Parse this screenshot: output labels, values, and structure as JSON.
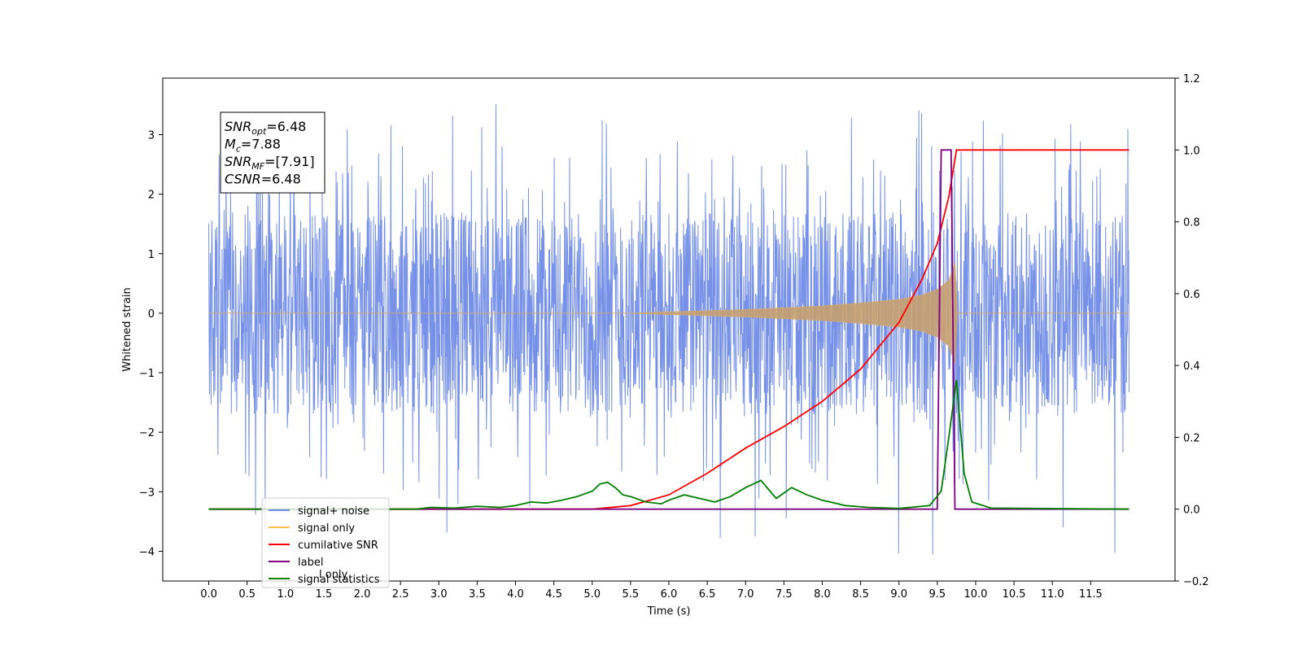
{
  "chart_data": {
    "type": "line",
    "xlabel": "Time (s)",
    "ylabel": "Whitened strain",
    "xlim": [
      -0.6,
      12.6
    ],
    "ylim": [
      -4.5,
      3.95
    ],
    "y2lim": [
      -0.2,
      1.2
    ],
    "x_ticks": [
      "0.0",
      "0.5",
      "1.0",
      "1.5",
      "2.0",
      "2.5",
      "3.0",
      "3.5",
      "4.0",
      "4.5",
      "5.0",
      "5.5",
      "6.0",
      "6.5",
      "7.0",
      "7.5",
      "8.0",
      "8.5",
      "9.0",
      "9.5",
      "10.0",
      "10.5",
      "11.0",
      "11.5"
    ],
    "y_ticks": [
      "3",
      "2",
      "1",
      "0",
      "−1",
      "−2",
      "−3",
      "−4"
    ],
    "y2_ticks": [
      "1.2",
      "1.0",
      "0.8",
      "0.6",
      "0.4",
      "0.2",
      "0.0",
      "−0.2"
    ],
    "legend_position": "lower left",
    "legend": [
      {
        "label": "signal+ noise",
        "color": "#6f8be6"
      },
      {
        "label": "signal only",
        "color": "#ffc04a"
      },
      {
        "label": "cumilative SNR",
        "color": "#ff0000"
      },
      {
        "label": "label",
        "color": "#800080"
      },
      {
        "label": "signal statistics",
        "color": "#008000"
      }
    ],
    "hidden_label_fragment": "l only",
    "annotation": {
      "lines": [
        {
          "main": "SNR",
          "sub": "opt",
          "rest": "=6.48"
        },
        {
          "main": "M",
          "sub": "c",
          "rest": "=7.88"
        },
        {
          "main": "SNR",
          "sub": "MF",
          "rest": "=[7.91]"
        },
        {
          "main": "CSNR",
          "sub": "",
          "rest": "=6.48"
        }
      ]
    },
    "series": [
      {
        "name": "signal+ noise",
        "axis": "left",
        "kind": "noise",
        "x_range": [
          0.0,
          12.0
        ],
        "band": [
          -1.7,
          1.7
        ],
        "peaks_max": 3.6,
        "peaks_min": -4.1
      },
      {
        "name": "signal only",
        "axis": "left",
        "kind": "chirp-envelope",
        "points": [
          [
            0.0,
            0.0
          ],
          [
            5.5,
            0.0
          ],
          [
            6.0,
            0.02
          ],
          [
            7.0,
            0.06
          ],
          [
            8.0,
            0.12
          ],
          [
            8.5,
            0.17
          ],
          [
            9.0,
            0.23
          ],
          [
            9.3,
            0.3
          ],
          [
            9.5,
            0.4
          ],
          [
            9.65,
            0.55
          ],
          [
            9.73,
            0.85
          ],
          [
            9.76,
            0.0
          ],
          [
            12.0,
            0.0
          ]
        ]
      },
      {
        "name": "cumilative SNR",
        "axis": "right",
        "points": [
          [
            0.0,
            0.0
          ],
          [
            5.0,
            0.0
          ],
          [
            5.5,
            0.01
          ],
          [
            6.0,
            0.04
          ],
          [
            6.5,
            0.1
          ],
          [
            7.0,
            0.17
          ],
          [
            7.5,
            0.23
          ],
          [
            8.0,
            0.3
          ],
          [
            8.5,
            0.39
          ],
          [
            9.0,
            0.52
          ],
          [
            9.3,
            0.64
          ],
          [
            9.5,
            0.74
          ],
          [
            9.65,
            0.87
          ],
          [
            9.75,
            1.0
          ],
          [
            12.0,
            1.0
          ]
        ]
      },
      {
        "name": "label",
        "axis": "right",
        "points": [
          [
            0.0,
            0.0
          ],
          [
            9.5,
            0.0
          ],
          [
            9.5,
            0.0
          ],
          [
            9.55,
            1.0
          ],
          [
            9.68,
            1.0
          ],
          [
            9.73,
            0.0
          ],
          [
            12.0,
            0.0
          ]
        ]
      },
      {
        "name": "signal statistics",
        "axis": "right",
        "points": [
          [
            0.0,
            0.0
          ],
          [
            2.7,
            0.0
          ],
          [
            2.9,
            0.005
          ],
          [
            3.2,
            0.003
          ],
          [
            3.5,
            0.008
          ],
          [
            3.8,
            0.005
          ],
          [
            4.0,
            0.01
          ],
          [
            4.2,
            0.02
          ],
          [
            4.4,
            0.017
          ],
          [
            4.6,
            0.025
          ],
          [
            4.8,
            0.035
          ],
          [
            5.0,
            0.05
          ],
          [
            5.1,
            0.07
          ],
          [
            5.2,
            0.075
          ],
          [
            5.3,
            0.06
          ],
          [
            5.4,
            0.04
          ],
          [
            5.5,
            0.035
          ],
          [
            5.7,
            0.02
          ],
          [
            5.9,
            0.015
          ],
          [
            6.0,
            0.025
          ],
          [
            6.2,
            0.04
          ],
          [
            6.4,
            0.03
          ],
          [
            6.6,
            0.02
          ],
          [
            6.8,
            0.035
          ],
          [
            7.0,
            0.06
          ],
          [
            7.2,
            0.08
          ],
          [
            7.4,
            0.03
          ],
          [
            7.6,
            0.06
          ],
          [
            7.8,
            0.04
          ],
          [
            8.0,
            0.025
          ],
          [
            8.3,
            0.01
          ],
          [
            8.6,
            0.005
          ],
          [
            9.0,
            0.002
          ],
          [
            9.4,
            0.01
          ],
          [
            9.55,
            0.05
          ],
          [
            9.65,
            0.2
          ],
          [
            9.75,
            0.36
          ],
          [
            9.85,
            0.1
          ],
          [
            9.95,
            0.02
          ],
          [
            10.2,
            0.003
          ],
          [
            12.0,
            0.0
          ]
        ]
      }
    ]
  }
}
